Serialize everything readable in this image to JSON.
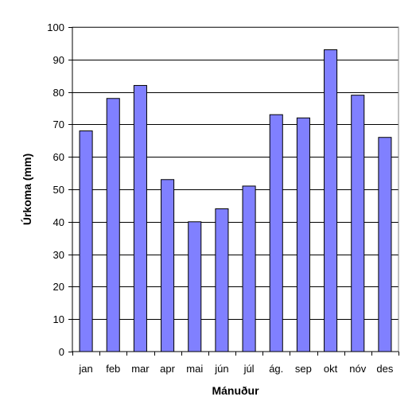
{
  "chart_data": {
    "type": "bar",
    "categories": [
      "jan",
      "feb",
      "mar",
      "apr",
      "mai",
      "jún",
      "júl",
      "ág.",
      "sep",
      "okt",
      "nóv",
      "des"
    ],
    "values": [
      68,
      78,
      82,
      53,
      40,
      44,
      51,
      73,
      72,
      93,
      79,
      66
    ],
    "xlabel": "Mánuður",
    "ylabel": "Úrkoma (mm)",
    "ylim": [
      0,
      100
    ],
    "yticks": [
      0,
      10,
      20,
      30,
      40,
      50,
      60,
      70,
      80,
      90,
      100
    ],
    "grid": true,
    "legend": "none",
    "colors": {
      "bar_fill": "#8080ff",
      "bar_stroke": "#000000",
      "gridline": "#000000",
      "plot_background": "#ffffff"
    }
  }
}
